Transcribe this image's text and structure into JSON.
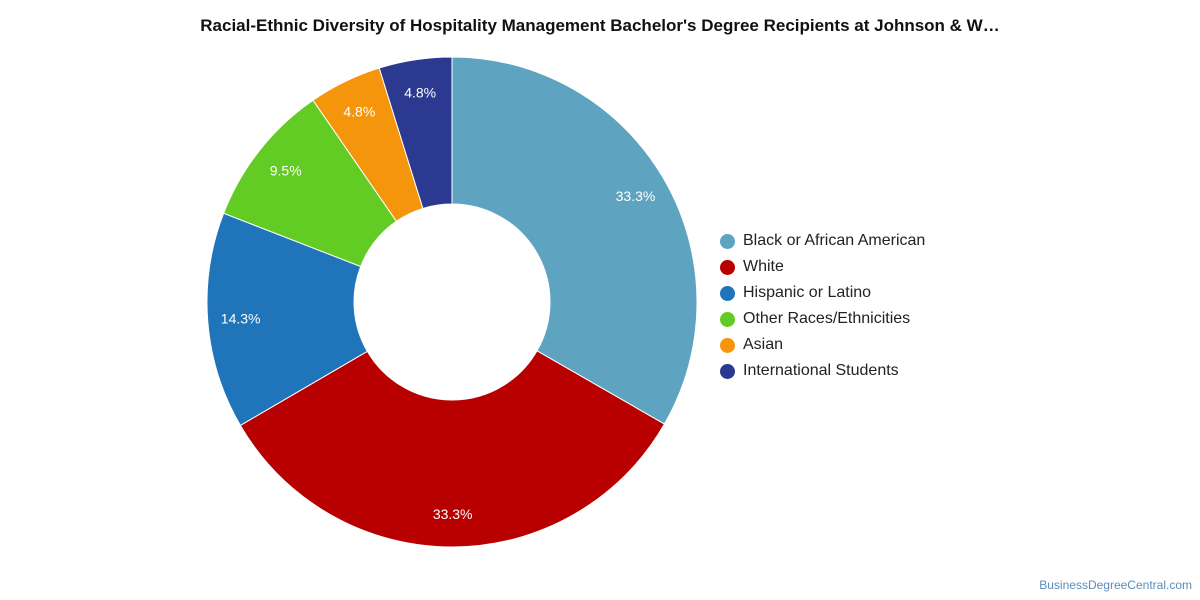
{
  "chart_data": {
    "type": "pie",
    "title": "Racial-Ethnic Diversity of Hospitality Management Bachelor's Degree Recipients at Johnson & W…",
    "donut": true,
    "legend_position": "right",
    "slices": [
      {
        "label": "Black or African American",
        "value": 33.3,
        "value_label": "33.3%",
        "color": "#5ea3c0"
      },
      {
        "label": "White",
        "value": 33.3,
        "value_label": "33.3%",
        "color": "#b80000"
      },
      {
        "label": "Hispanic or Latino",
        "value": 14.3,
        "value_label": "14.3%",
        "color": "#1f74ba"
      },
      {
        "label": "Other Races/Ethnicities",
        "value": 9.5,
        "value_label": "9.5%",
        "color": "#62cc24"
      },
      {
        "label": "Asian",
        "value": 4.8,
        "value_label": "4.8%",
        "color": "#f5950b"
      },
      {
        "label": "International Students",
        "value": 4.8,
        "value_label": "4.8%",
        "color": "#2b3990"
      }
    ]
  },
  "watermark": "BusinessDegreeCentral.com"
}
